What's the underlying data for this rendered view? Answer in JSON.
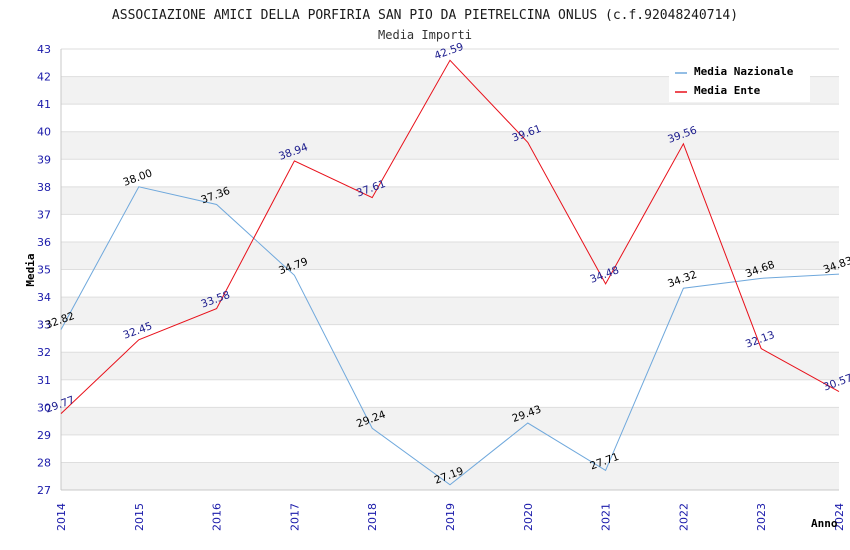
{
  "chart_data": {
    "type": "line",
    "title": "ASSOCIAZIONE AMICI DELLA PORFIRIA SAN PIO DA PIETRELCINA ONLUS (c.f.92048240714)",
    "subtitle": "Media Importi",
    "xlabel": "Anno",
    "ylabel": "Media",
    "x": [
      "2014",
      "2015",
      "2016",
      "2017",
      "2018",
      "2019",
      "2020",
      "2021",
      "2022",
      "2023",
      "2024"
    ],
    "ylim": [
      27,
      43
    ],
    "yticks": [
      27,
      28,
      29,
      30,
      31,
      32,
      33,
      34,
      35,
      36,
      37,
      38,
      39,
      40,
      41,
      42,
      43
    ],
    "grid": true,
    "legend_position": "top-right",
    "series": [
      {
        "name": "Media Nazionale",
        "color": "#6fa8dc",
        "label_color": "#000000",
        "values": [
          32.82,
          38.0,
          37.36,
          34.79,
          29.24,
          27.19,
          29.43,
          27.71,
          34.32,
          34.68,
          34.83
        ],
        "labels": [
          "32.82",
          "38.00",
          "37.36",
          "34.79",
          "29.24",
          "27.19",
          "29.43",
          "27.71",
          "34.32",
          "34.68",
          "34.83"
        ]
      },
      {
        "name": "Media Ente",
        "color": "#e8101a",
        "label_color": "#1a1a8c",
        "values": [
          29.77,
          32.45,
          33.58,
          38.94,
          37.61,
          42.59,
          39.61,
          34.48,
          39.56,
          32.13,
          30.57
        ],
        "labels": [
          "29.77",
          "32.45",
          "33.58",
          "38.94",
          "37.61",
          "42.59",
          "39.61",
          "34.48",
          "39.56",
          "32.13",
          "30.57"
        ]
      }
    ]
  }
}
